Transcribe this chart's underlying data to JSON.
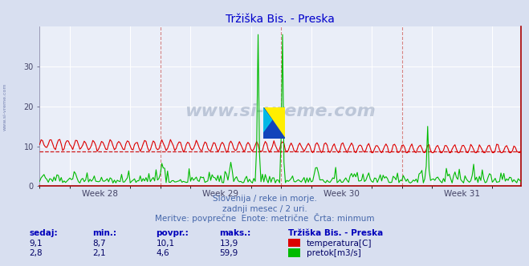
{
  "title": "Tržiška Bis. - Preska",
  "title_color": "#0000cc",
  "background_color": "#d8dff0",
  "plot_bg_color": "#eaeef8",
  "grid_color": "#ffffff",
  "grid_minor_color": "#dde4f0",
  "watermark_text": "www.si-vreme.com",
  "watermark_color": "#1a3a6a",
  "watermark_alpha": 0.22,
  "left_label": "www.si-vreme.com",
  "xlabel_lines": [
    "Slovenija / reke in morje.",
    "zadnji mesec / 2 uri.",
    "Meritve: povprečne  Enote: metrične  Črta: minmum"
  ],
  "footer_label_color": "#4466aa",
  "week_labels": [
    "Week 28",
    "Week 29",
    "Week 30",
    "Week 31"
  ],
  "ylim": [
    0,
    40
  ],
  "yticks": [
    0,
    10,
    20,
    30
  ],
  "n_points": 336,
  "temp_color": "#dd0000",
  "flow_color": "#00bb00",
  "temp_min_line_color": "#cc0000",
  "temp_min_value": 8.7,
  "vline_color": "#cc4444",
  "table_headers": [
    "sedaj:",
    "min.:",
    "povpr.:",
    "maks.:"
  ],
  "table_temp": [
    "9,1",
    "8,7",
    "10,1",
    "13,9"
  ],
  "table_flow": [
    "2,8",
    "2,1",
    "4,6",
    "59,9"
  ],
  "legend_title": "Tržiška Bis. - Preska",
  "legend_temp": "temperatura[C]",
  "legend_flow": "pretok[m3/s]",
  "header_color": "#0000bb",
  "value_color": "#000066"
}
